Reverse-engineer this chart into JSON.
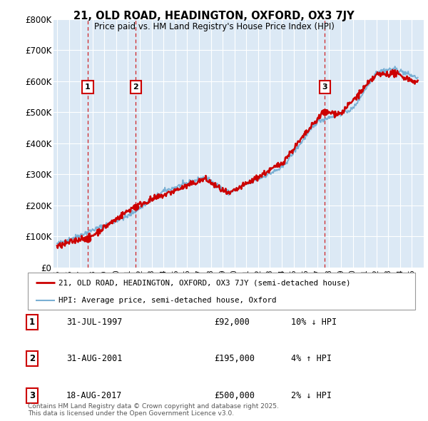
{
  "title": "21, OLD ROAD, HEADINGTON, OXFORD, OX3 7JY",
  "subtitle": "Price paid vs. HM Land Registry's House Price Index (HPI)",
  "ylim": [
    0,
    800000
  ],
  "yticks": [
    0,
    100000,
    200000,
    300000,
    400000,
    500000,
    600000,
    700000,
    800000
  ],
  "ytick_labels": [
    "£0",
    "£100K",
    "£200K",
    "£300K",
    "£400K",
    "£500K",
    "£600K",
    "£700K",
    "£800K"
  ],
  "purchases": [
    {
      "year": 1997.58,
      "price": 92000,
      "label": "1"
    },
    {
      "year": 2001.66,
      "price": 195000,
      "label": "2"
    },
    {
      "year": 2017.63,
      "price": 500000,
      "label": "3"
    }
  ],
  "legend_entries": [
    {
      "label": "21, OLD ROAD, HEADINGTON, OXFORD, OX3 7JY (semi-detached house)",
      "color": "#cc0000",
      "lw": 2
    },
    {
      "label": "HPI: Average price, semi-detached house, Oxford",
      "color": "#7ab0d4",
      "lw": 1.5
    }
  ],
  "table_rows": [
    {
      "num": "1",
      "date": "31-JUL-1997",
      "price": "£92,000",
      "hpi": "10% ↓ HPI"
    },
    {
      "num": "2",
      "date": "31-AUG-2001",
      "price": "£195,000",
      "hpi": "4% ↑ HPI"
    },
    {
      "num": "3",
      "date": "18-AUG-2017",
      "price": "£500,000",
      "hpi": "2% ↓ HPI"
    }
  ],
  "footer": "Contains HM Land Registry data © Crown copyright and database right 2025.\nThis data is licensed under the Open Government Licence v3.0.",
  "plot_bg_color": "#dce9f5",
  "red_line_color": "#cc0000",
  "blue_line_color": "#7ab0d4",
  "dashed_line_color": "#cc0000",
  "grid_color": "#ffffff",
  "label_box_color": "#cc0000"
}
